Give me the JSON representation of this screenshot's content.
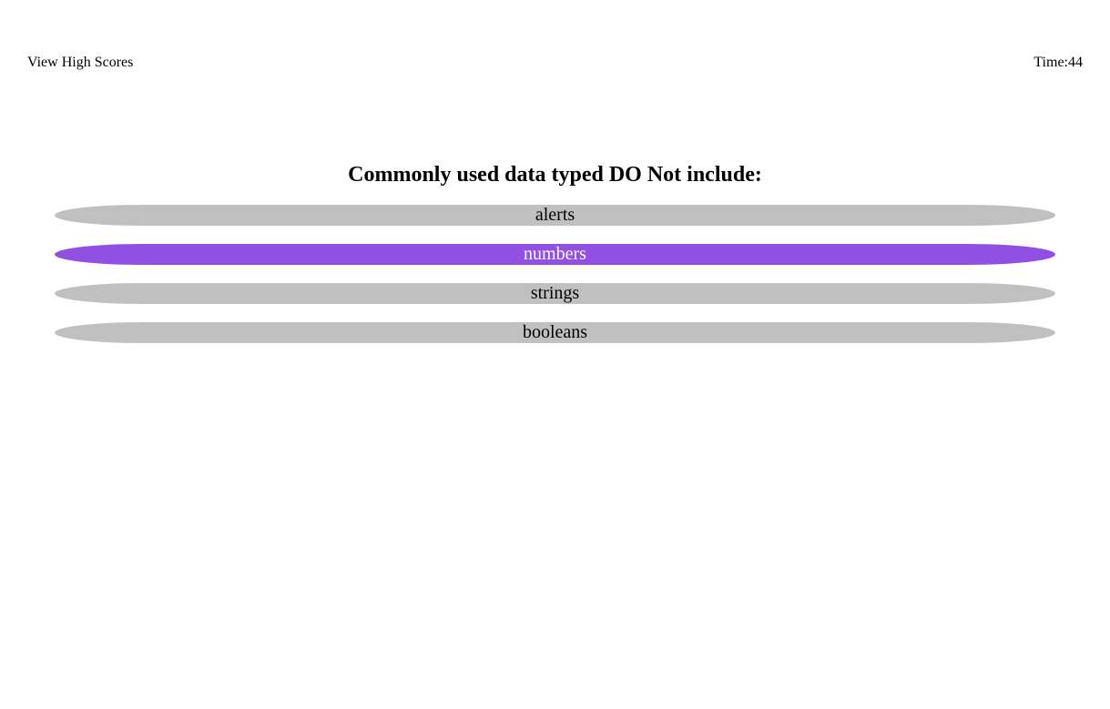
{
  "header": {
    "high_scores_label": "View High Scores",
    "time_label": "Time: ",
    "time_value": "44"
  },
  "quiz": {
    "question": "Commonly used data typed DO Not include:",
    "choices": [
      {
        "label": "alerts",
        "selected": false
      },
      {
        "label": "numbers",
        "selected": true
      },
      {
        "label": "strings",
        "selected": false
      },
      {
        "label": "booleans",
        "selected": false
      }
    ]
  },
  "colors": {
    "choice_default": "#c0c0c0",
    "choice_selected": "#8f50e3",
    "choice_selected_text": "#ffffff"
  }
}
